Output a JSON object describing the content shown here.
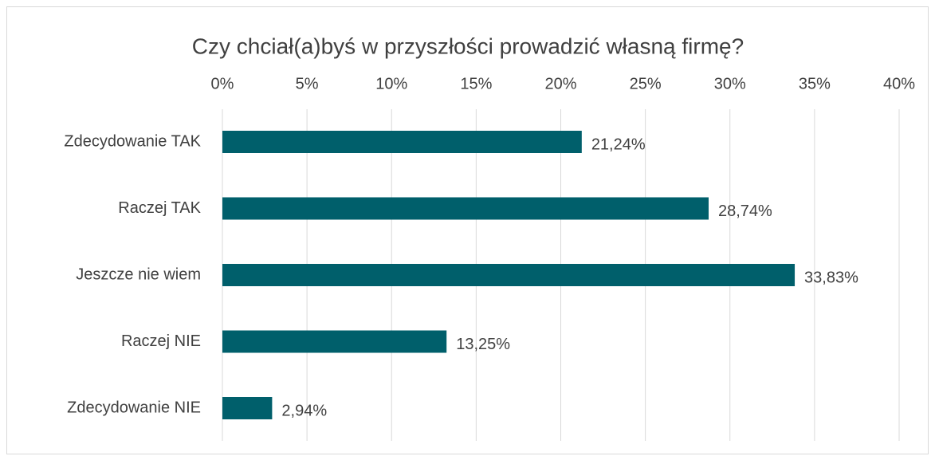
{
  "chart_data": {
    "type": "bar",
    "orientation": "horizontal",
    "title": "Czy chciał(a)byś w przyszłości prowadzić własną firmę?",
    "categories": [
      "Zdecydowanie TAK",
      "Raczej TAK",
      "Jeszcze nie wiem",
      "Raczej NIE",
      "Zdecydowanie NIE"
    ],
    "values": [
      21.24,
      28.74,
      33.83,
      13.25,
      2.94
    ],
    "value_labels": [
      "21,24%",
      "28,74%",
      "33,83%",
      "13,25%",
      "2,94%"
    ],
    "color": "#005f6b",
    "xlim": [
      0,
      40
    ],
    "xticks": [
      {
        "value": 0,
        "label": "0%"
      },
      {
        "value": 5,
        "label": "5%"
      },
      {
        "value": 10,
        "label": "10%"
      },
      {
        "value": 15,
        "label": "15%"
      },
      {
        "value": 20,
        "label": "20%"
      },
      {
        "value": 25,
        "label": "25%"
      },
      {
        "value": 30,
        "label": "30%"
      },
      {
        "value": 35,
        "label": "35%"
      },
      {
        "value": 40,
        "label": "40%"
      }
    ],
    "grid": true
  }
}
